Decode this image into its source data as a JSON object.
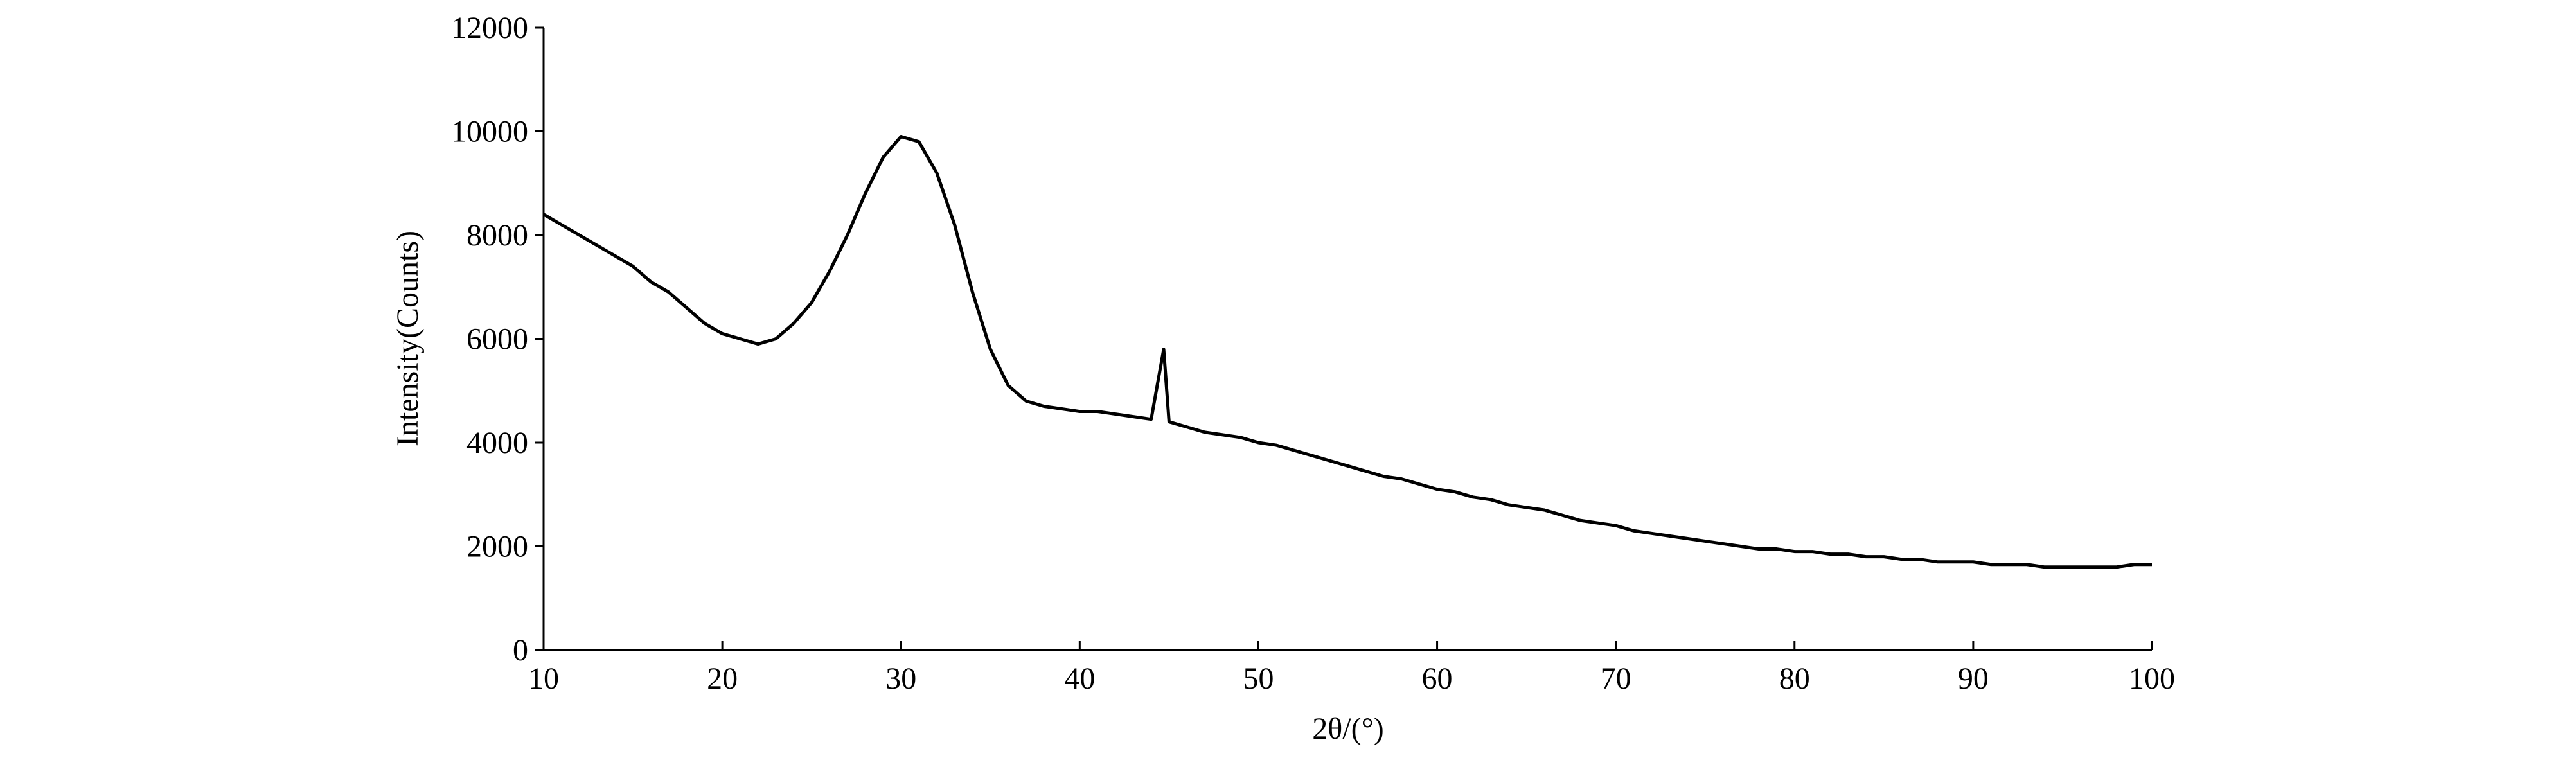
{
  "chart_data": {
    "type": "line",
    "x_label": "2θ/(°)",
    "y_label": "Intensity(Counts)",
    "x": [
      10,
      11,
      12,
      13,
      14,
      15,
      16,
      17,
      18,
      19,
      20,
      21,
      22,
      23,
      24,
      25,
      26,
      27,
      28,
      29,
      30,
      31,
      32,
      33,
      34,
      35,
      36,
      37,
      38,
      39,
      40,
      41,
      42,
      43,
      44,
      44.7,
      45,
      46,
      47,
      48,
      49,
      50,
      51,
      52,
      53,
      54,
      55,
      56,
      57,
      58,
      59,
      60,
      61,
      62,
      63,
      64,
      65,
      66,
      67,
      68,
      69,
      70,
      71,
      72,
      73,
      74,
      75,
      76,
      77,
      78,
      79,
      80,
      81,
      82,
      83,
      84,
      85,
      86,
      87,
      88,
      89,
      90,
      91,
      92,
      93,
      94,
      95,
      96,
      97,
      98,
      99,
      100
    ],
    "series": [
      {
        "color": "#000000",
        "values": [
          8400,
          8200,
          8000,
          7800,
          7600,
          7400,
          7100,
          6900,
          6600,
          6300,
          6100,
          6000,
          5900,
          6000,
          6300,
          6700,
          7300,
          8000,
          8800,
          9500,
          9900,
          9800,
          9200,
          8200,
          6900,
          5800,
          5100,
          4800,
          4700,
          4650,
          4600,
          4600,
          4550,
          4500,
          4450,
          5800,
          4400,
          4300,
          4200,
          4150,
          4100,
          4000,
          3950,
          3850,
          3750,
          3650,
          3550,
          3450,
          3350,
          3300,
          3200,
          3100,
          3050,
          2950,
          2900,
          2800,
          2750,
          2700,
          2600,
          2500,
          2450,
          2400,
          2300,
          2250,
          2200,
          2150,
          2100,
          2050,
          2000,
          1950,
          1950,
          1900,
          1900,
          1850,
          1850,
          1800,
          1800,
          1750,
          1750,
          1700,
          1700,
          1700,
          1650,
          1650,
          1650,
          1600,
          1600,
          1600,
          1600,
          1600,
          1650,
          1650
        ]
      }
    ],
    "xlim": [
      10,
      100
    ],
    "ylim": [
      0,
      12000
    ],
    "xticks": [
      10,
      20,
      30,
      40,
      50,
      60,
      70,
      80,
      90,
      100
    ],
    "yticks": [
      0,
      2000,
      4000,
      6000,
      8000,
      10000,
      12000
    ]
  }
}
